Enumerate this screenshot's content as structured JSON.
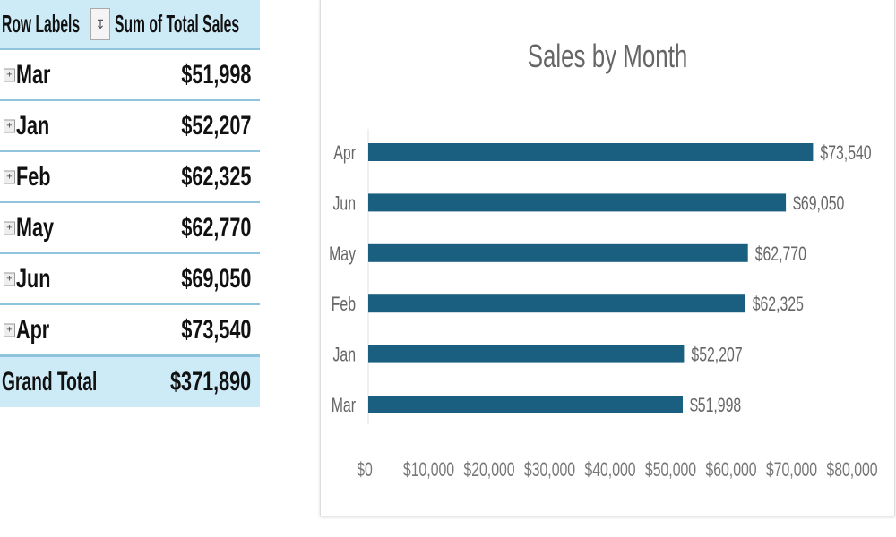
{
  "pivot": {
    "header": {
      "row_labels": "Row Labels",
      "sort_icon": "sort-filter-icon",
      "value_header": "Sum of Total Sales"
    },
    "rows": [
      {
        "label": "Mar",
        "value": "$51,998"
      },
      {
        "label": "Jan",
        "value": "$52,207"
      },
      {
        "label": "Feb",
        "value": "$62,325"
      },
      {
        "label": "May",
        "value": "$62,770"
      },
      {
        "label": "Jun",
        "value": "$69,050"
      },
      {
        "label": "Apr",
        "value": "$73,540"
      }
    ],
    "grand_total": {
      "label": "Grand Total",
      "value": "$371,890"
    },
    "colors": {
      "header_bg": "#cdeaf7",
      "border": "#8fc4dc"
    }
  },
  "chart_data": {
    "type": "bar",
    "orientation": "horizontal",
    "title": "Sales by Month",
    "categories": [
      "Apr",
      "Jun",
      "May",
      "Feb",
      "Jan",
      "Mar"
    ],
    "values": [
      73540,
      69050,
      62770,
      62325,
      52207,
      51998
    ],
    "data_labels": [
      "$73,540",
      "$69,050",
      "$62,770",
      "$62,325",
      "$52,207",
      "$51,998"
    ],
    "xlim": [
      0,
      80000
    ],
    "x_ticks": [
      0,
      10000,
      20000,
      30000,
      40000,
      50000,
      60000,
      70000,
      80000
    ],
    "x_tick_labels": [
      "$0",
      "$10,000",
      "$20,000",
      "$30,000",
      "$40,000",
      "$50,000",
      "$60,000",
      "$70,000",
      "$80,000"
    ],
    "grid": false,
    "legend": "none",
    "bar_color": "#1a5f80",
    "text_color": "#666666"
  }
}
